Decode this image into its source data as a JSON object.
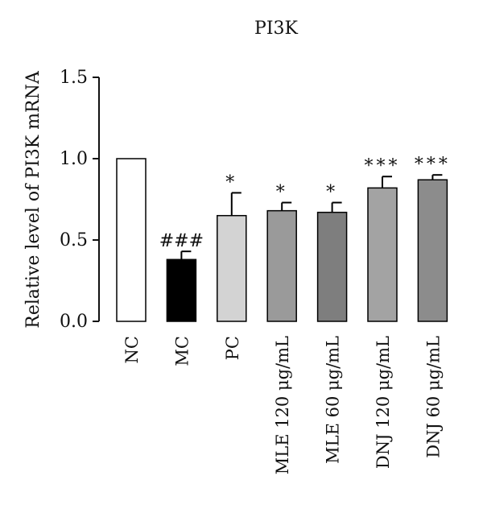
{
  "chart_data": {
    "type": "bar",
    "title": "PI3K",
    "xlabel": "",
    "ylabel": "Relative level of PI3K mRNA",
    "ylim": [
      0,
      1.5
    ],
    "yticks": [
      0.0,
      0.5,
      1.0,
      1.5
    ],
    "ytick_labels": [
      "0.0",
      "0.5",
      "1.0",
      "1.5"
    ],
    "grid": false,
    "categories": [
      "NC",
      "MC",
      "PC",
      "MLE 120 μg/mL",
      "MLE 60 μg/mL",
      "DNJ 120 μg/mL",
      "DNJ 60 μg/mL"
    ],
    "values": [
      1.0,
      0.38,
      0.65,
      0.68,
      0.67,
      0.82,
      0.87
    ],
    "error_upper": [
      0.0,
      0.05,
      0.14,
      0.05,
      0.06,
      0.07,
      0.03
    ],
    "annotations": [
      "",
      "###",
      "*",
      "*",
      "*",
      "***",
      "***"
    ],
    "bar_colors": [
      "#ffffff",
      "#000000",
      "#d3d3d3",
      "#9a9a9a",
      "#7e7e7e",
      "#a3a3a3",
      "#8c8c8c"
    ]
  }
}
